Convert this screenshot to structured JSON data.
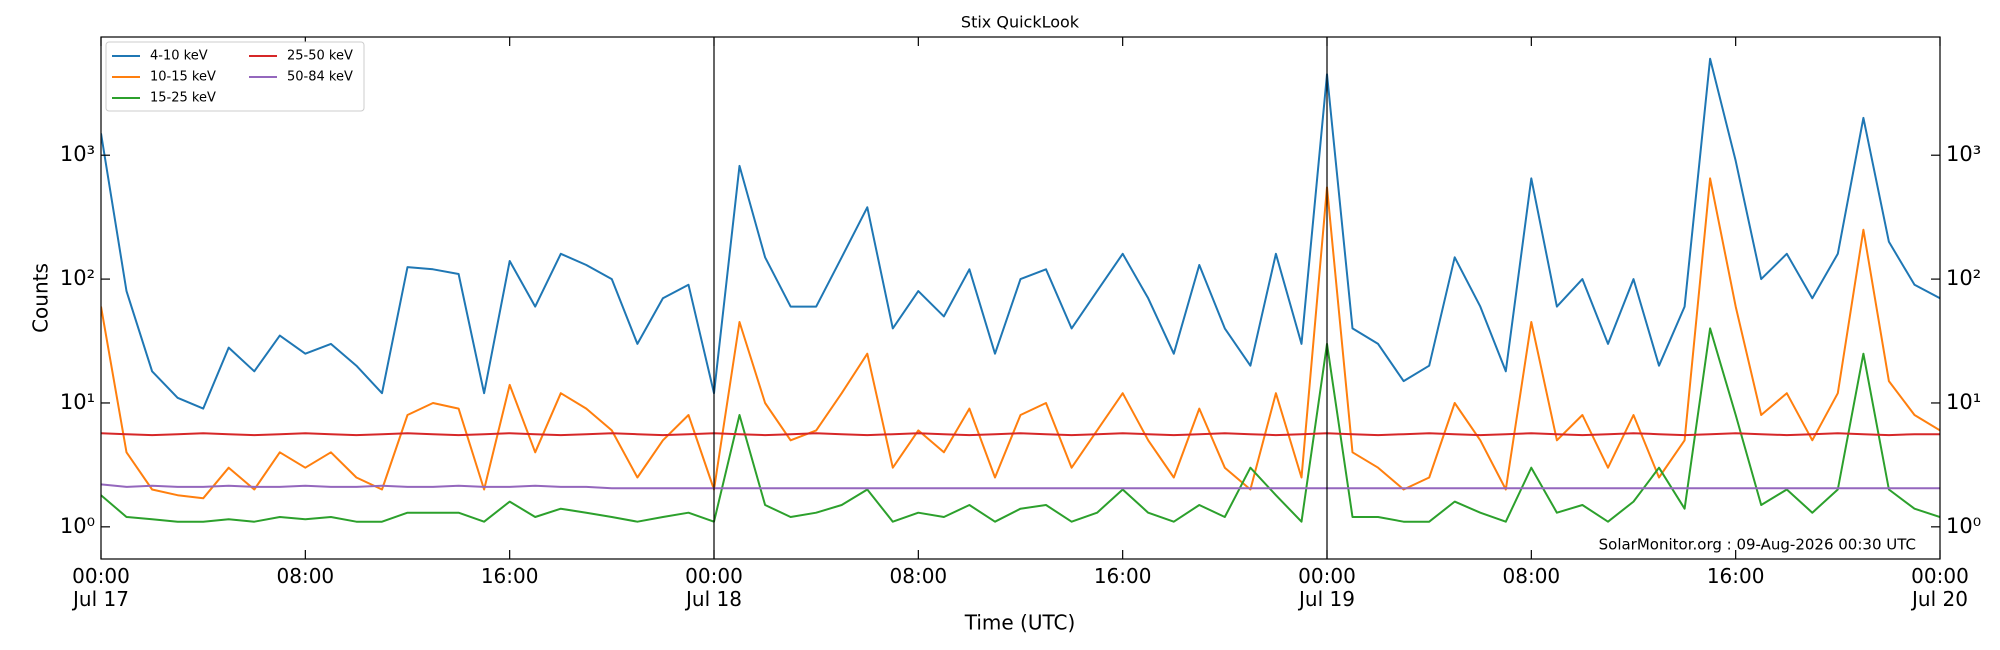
{
  "chart_data": {
    "type": "line",
    "title": "Stix QuickLook",
    "xlabel": "Time (UTC)",
    "ylabel": "Counts",
    "annotation": "SolarMonitor.org : 09-Aug-2026 00:30 UTC",
    "log_y": true,
    "legend": "upper left",
    "x": [
      "Jul 17 00:00",
      "Jul 17 01:00",
      "Jul 17 02:00",
      "Jul 17 03:00",
      "Jul 17 04:00",
      "Jul 17 05:00",
      "Jul 17 06:00",
      "Jul 17 07:00",
      "Jul 17 08:00",
      "Jul 17 09:00",
      "Jul 17 10:00",
      "Jul 17 11:00",
      "Jul 17 12:00",
      "Jul 17 13:00",
      "Jul 17 14:00",
      "Jul 17 15:00",
      "Jul 17 16:00",
      "Jul 17 17:00",
      "Jul 17 18:00",
      "Jul 17 19:00",
      "Jul 17 20:00",
      "Jul 17 21:00",
      "Jul 17 22:00",
      "Jul 17 23:00",
      "Jul 18 00:00",
      "Jul 18 01:00",
      "Jul 18 02:00",
      "Jul 18 03:00",
      "Jul 18 04:00",
      "Jul 18 05:00",
      "Jul 18 06:00",
      "Jul 18 07:00",
      "Jul 18 08:00",
      "Jul 18 09:00",
      "Jul 18 10:00",
      "Jul 18 11:00",
      "Jul 18 12:00",
      "Jul 18 13:00",
      "Jul 18 14:00",
      "Jul 18 15:00",
      "Jul 18 16:00",
      "Jul 18 17:00",
      "Jul 18 18:00",
      "Jul 18 19:00",
      "Jul 18 20:00",
      "Jul 18 21:00",
      "Jul 18 22:00",
      "Jul 18 23:00",
      "Jul 19 00:00",
      "Jul 19 01:00",
      "Jul 19 02:00",
      "Jul 19 03:00",
      "Jul 19 04:00",
      "Jul 19 05:00",
      "Jul 19 06:00",
      "Jul 19 07:00",
      "Jul 19 08:00",
      "Jul 19 09:00",
      "Jul 19 10:00",
      "Jul 19 11:00",
      "Jul 19 12:00",
      "Jul 19 13:00",
      "Jul 19 14:00",
      "Jul 19 15:00",
      "Jul 19 16:00",
      "Jul 19 17:00",
      "Jul 19 18:00",
      "Jul 19 19:00",
      "Jul 19 20:00",
      "Jul 19 21:00",
      "Jul 19 22:00",
      "Jul 19 23:00",
      "Jul 20 00:00"
    ],
    "series": [
      {
        "name": "4-10 keV",
        "color": "#1f77b4",
        "values": [
          1500,
          80,
          18,
          11,
          9,
          28,
          18,
          35,
          25,
          30,
          20,
          12,
          125,
          120,
          110,
          12,
          140,
          60,
          160,
          130,
          100,
          30,
          70,
          90,
          12,
          820,
          150,
          60,
          60,
          150,
          380,
          40,
          80,
          50,
          120,
          25,
          100,
          120,
          40,
          80,
          160,
          70,
          25,
          130,
          40,
          20,
          160,
          30,
          4500,
          40,
          30,
          15,
          20,
          150,
          60,
          18,
          650,
          60,
          100,
          30,
          100,
          20,
          60,
          6000,
          900,
          100,
          160,
          70,
          160,
          2000,
          200,
          90,
          70
        ]
      },
      {
        "name": "10-15 keV",
        "color": "#ff7f0e",
        "values": [
          60,
          4,
          2,
          1.8,
          1.7,
          3,
          2,
          4,
          3,
          4,
          2.5,
          2,
          8,
          10,
          9,
          2,
          14,
          4,
          12,
          9,
          6,
          2.5,
          5,
          8,
          2,
          45,
          10,
          5,
          6,
          12,
          25,
          3,
          6,
          4,
          9,
          2.5,
          8,
          10,
          3,
          6,
          12,
          5,
          2.5,
          9,
          3,
          2,
          12,
          2.5,
          550,
          4,
          3,
          2,
          2.5,
          10,
          5,
          2,
          45,
          5,
          8,
          3,
          8,
          2.5,
          5,
          650,
          60,
          8,
          12,
          5,
          12,
          250,
          15,
          8,
          6
        ]
      },
      {
        "name": "15-25 keV",
        "color": "#2ca02c",
        "values": [
          1.8,
          1.2,
          1.15,
          1.1,
          1.1,
          1.15,
          1.1,
          1.2,
          1.15,
          1.2,
          1.1,
          1.1,
          1.3,
          1.3,
          1.3,
          1.1,
          1.6,
          1.2,
          1.4,
          1.3,
          1.2,
          1.1,
          1.2,
          1.3,
          1.1,
          8,
          1.5,
          1.2,
          1.3,
          1.5,
          2,
          1.1,
          1.3,
          1.2,
          1.5,
          1.1,
          1.4,
          1.5,
          1.1,
          1.3,
          2,
          1.3,
          1.1,
          1.5,
          1.2,
          3,
          1.8,
          1.1,
          30,
          1.2,
          1.2,
          1.1,
          1.1,
          1.6,
          1.3,
          1.1,
          3,
          1.3,
          1.5,
          1.1,
          1.6,
          3,
          1.4,
          40,
          8,
          1.5,
          2,
          1.3,
          2,
          25,
          2,
          1.4,
          1.2
        ]
      },
      {
        "name": "25-50 keV",
        "color": "#d62728",
        "values": [
          5.7,
          5.6,
          5.5,
          5.6,
          5.7,
          5.6,
          5.5,
          5.6,
          5.7,
          5.6,
          5.5,
          5.6,
          5.7,
          5.6,
          5.5,
          5.6,
          5.7,
          5.6,
          5.5,
          5.6,
          5.7,
          5.6,
          5.5,
          5.6,
          5.7,
          5.6,
          5.5,
          5.6,
          5.7,
          5.6,
          5.5,
          5.6,
          5.7,
          5.6,
          5.5,
          5.6,
          5.7,
          5.6,
          5.5,
          5.6,
          5.7,
          5.6,
          5.5,
          5.6,
          5.7,
          5.6,
          5.5,
          5.6,
          5.7,
          5.6,
          5.5,
          5.6,
          5.7,
          5.6,
          5.5,
          5.6,
          5.7,
          5.6,
          5.5,
          5.6,
          5.7,
          5.6,
          5.5,
          5.6,
          5.7,
          5.6,
          5.5,
          5.6,
          5.7,
          5.6,
          5.5,
          5.6,
          5.6
        ]
      },
      {
        "name": "50-84 keV",
        "color": "#9467bd",
        "values": [
          2.2,
          2.1,
          2.15,
          2.1,
          2.1,
          2.15,
          2.1,
          2.1,
          2.15,
          2.1,
          2.1,
          2.15,
          2.1,
          2.1,
          2.15,
          2.1,
          2.1,
          2.15,
          2.1,
          2.1,
          2.05,
          2.05,
          2.05,
          2.05,
          2.05,
          2.05,
          2.05,
          2.05,
          2.05,
          2.05,
          2.05,
          2.05,
          2.05,
          2.05,
          2.05,
          2.05,
          2.05,
          2.05,
          2.05,
          2.05,
          2.05,
          2.05,
          2.05,
          2.05,
          2.05,
          2.05,
          2.05,
          2.05,
          2.05,
          2.05,
          2.05,
          2.05,
          2.05,
          2.05,
          2.05,
          2.05,
          2.05,
          2.05,
          2.05,
          2.05,
          2.05,
          2.05,
          2.05,
          2.05,
          2.05,
          2.05,
          2.05,
          2.05,
          2.05,
          2.05,
          2.05,
          2.05,
          2.05
        ]
      }
    ],
    "xlim": [
      "Jul 17 00:00",
      "Jul 20 00:00"
    ],
    "xticks": [
      {
        "value": "Jul 17 00:00",
        "label": "00:00\nJul 17"
      },
      {
        "value": "Jul 17 08:00",
        "label": "08:00"
      },
      {
        "value": "Jul 17 16:00",
        "label": "16:00"
      },
      {
        "value": "Jul 18 00:00",
        "label": "00:00\nJul 18"
      },
      {
        "value": "Jul 18 08:00",
        "label": "08:00"
      },
      {
        "value": "Jul 18 16:00",
        "label": "16:00"
      },
      {
        "value": "Jul 19 00:00",
        "label": "00:00\nJul 19"
      },
      {
        "value": "Jul 19 08:00",
        "label": "08:00"
      },
      {
        "value": "Jul 19 16:00",
        "label": "16:00"
      },
      {
        "value": "Jul 20 00:00",
        "label": "00:00\nJul 20"
      }
    ],
    "vlines": [
      "Jul 18 00:00",
      "Jul 19 00:00"
    ],
    "ylim": [
      0.55,
      9000
    ],
    "yticks": [
      {
        "value": 1,
        "label": "10⁰"
      },
      {
        "value": 10,
        "label": "10¹"
      },
      {
        "value": 100,
        "label": "10²"
      },
      {
        "value": 1000,
        "label": "10³"
      }
    ]
  }
}
